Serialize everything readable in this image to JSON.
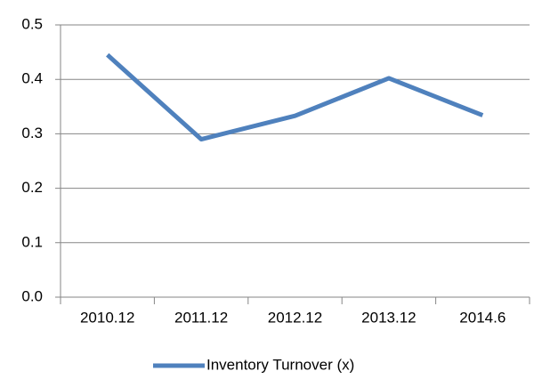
{
  "chart_data": {
    "type": "line",
    "categories": [
      "2010.12",
      "2011.12",
      "2012.12",
      "2013.12",
      "2014.6"
    ],
    "series": [
      {
        "name": "Inventory Turnover (x)",
        "color": "#4f81bd",
        "values": [
          0.445,
          0.29,
          0.333,
          0.402,
          0.334
        ]
      }
    ],
    "ylim": [
      0,
      0.5
    ],
    "yticks": [
      {
        "value": 0,
        "label": "0.0"
      },
      0.1,
      0.2,
      0.3,
      0.4,
      0.5
    ],
    "grid": true,
    "legend": "bottom"
  }
}
